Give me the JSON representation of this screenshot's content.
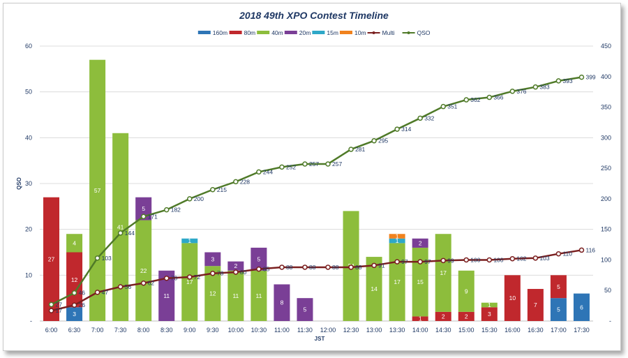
{
  "chart_data": {
    "type": "bar",
    "title": "2018 49th XPO Contest  Timeline",
    "xlabel": "JST",
    "ylabel": "QSO",
    "ylim": [
      0,
      60
    ],
    "y2lim": [
      0,
      450
    ],
    "yticks": [
      0,
      10,
      20,
      30,
      40,
      50,
      60
    ],
    "y2ticks": [
      0,
      50,
      100,
      150,
      200,
      250,
      300,
      350,
      400,
      450
    ],
    "categories": [
      "6:00",
      "6:30",
      "7:00",
      "7:30",
      "8:00",
      "8:30",
      "9:00",
      "9:30",
      "10:00",
      "10:30",
      "11:00",
      "11:30",
      "12:00",
      "12:30",
      "13:00",
      "13:30",
      "14:00",
      "14:30",
      "15:00",
      "15:30",
      "16:00",
      "16:30",
      "17:00",
      "17:30"
    ],
    "series": [
      {
        "name": "160m",
        "kind": "bar",
        "color": "#2e75b6",
        "values": [
          0,
          3,
          0,
          0,
          0,
          0,
          0,
          0,
          0,
          0,
          0,
          0,
          0,
          0,
          0,
          0,
          0,
          0,
          0,
          0,
          0,
          0,
          5,
          6
        ]
      },
      {
        "name": "80m",
        "kind": "bar",
        "color": "#c0282d",
        "values": [
          27,
          12,
          0,
          0,
          0,
          0,
          0,
          0,
          0,
          0,
          0,
          0,
          0,
          0,
          0,
          0,
          1,
          2,
          2,
          3,
          10,
          7,
          5,
          0
        ]
      },
      {
        "name": "40m",
        "kind": "bar",
        "color": "#8dbd3c",
        "values": [
          0,
          4,
          57,
          41,
          22,
          0,
          17,
          12,
          11,
          11,
          0,
          0,
          0,
          24,
          14,
          17,
          15,
          17,
          9,
          1,
          0,
          0,
          0,
          0
        ]
      },
      {
        "name": "20m",
        "kind": "bar",
        "color": "#7a3f96",
        "values": [
          0,
          0,
          0,
          0,
          5,
          11,
          0,
          3,
          2,
          5,
          8,
          5,
          0,
          0,
          0,
          0,
          2,
          0,
          0,
          0,
          0,
          0,
          0,
          0
        ]
      },
      {
        "name": "15m",
        "kind": "bar",
        "color": "#2ea8c8",
        "values": [
          0,
          0,
          0,
          0,
          0,
          0,
          1,
          0,
          0,
          0,
          0,
          0,
          0,
          0,
          0,
          1,
          0,
          0,
          0,
          0,
          0,
          0,
          0,
          0
        ]
      },
      {
        "name": "10m",
        "kind": "bar",
        "color": "#f0821e",
        "values": [
          0,
          0,
          0,
          0,
          0,
          0,
          0,
          0,
          0,
          0,
          0,
          0,
          0,
          0,
          0,
          1,
          0,
          0,
          0,
          0,
          0,
          0,
          0,
          0
        ]
      },
      {
        "name": "Multi",
        "kind": "line",
        "axis": "right",
        "color": "#7a1f1f",
        "values": [
          17,
          26,
          47,
          56,
          62,
          70,
          72,
          78,
          80,
          85,
          88,
          88,
          88,
          88,
          91,
          97,
          97,
          99,
          100,
          100,
          102,
          103,
          110,
          116
        ]
      },
      {
        "name": "QSO",
        "kind": "line",
        "axis": "right",
        "color": "#4f7a28",
        "values": [
          27,
          46,
          103,
          144,
          171,
          182,
          200,
          215,
          228,
          244,
          252,
          257,
          257,
          281,
          295,
          314,
          332,
          351,
          362,
          366,
          376,
          383,
          393,
          399
        ]
      }
    ],
    "legend_position": "top-center"
  }
}
